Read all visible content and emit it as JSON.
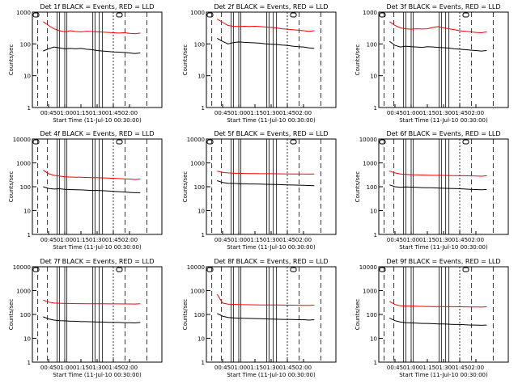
{
  "page": {
    "time_ticks": [
      "00:45",
      "01:00",
      "01:15",
      "01:30",
      "01:45",
      "02:00"
    ],
    "y_ticks": [
      "1",
      "10",
      "100",
      "1000",
      "10000"
    ]
  },
  "chart_data": [
    {
      "type": "line",
      "title": "Det 1f BLACK = Events, RED = LLD",
      "xlabel": "Start Time (11-Jul-10 00:30:00)",
      "ylabel": "Counts/sec",
      "y_scale": "log",
      "ylim": [
        1,
        1000
      ],
      "x_minutes": [
        10,
        15,
        20,
        25,
        30,
        35,
        40,
        45,
        50,
        55,
        60,
        65,
        70,
        75,
        80,
        85,
        90,
        95,
        100
      ],
      "series": [
        {
          "name": "Events",
          "color": "#000000",
          "values": [
            60,
            70,
            80,
            75,
            70,
            72,
            70,
            72,
            68,
            66,
            62,
            60,
            58,
            56,
            55,
            54,
            52,
            50,
            52
          ]
        },
        {
          "name": "LLD",
          "color": "#ff0000",
          "values": [
            500,
            380,
            300,
            260,
            240,
            260,
            245,
            240,
            250,
            245,
            240,
            235,
            230,
            225,
            220,
            225,
            215,
            210,
            220
          ]
        }
      ]
    },
    {
      "type": "line",
      "title": "Det 2f BLACK = Events, RED = LLD",
      "xlabel": "Start Time (11-Jul-10 00:30:00)",
      "ylabel": "Counts/sec",
      "y_scale": "log",
      "ylim": [
        1,
        1000
      ],
      "x_minutes": [
        10,
        15,
        20,
        25,
        30,
        35,
        40,
        45,
        50,
        55,
        60,
        65,
        70,
        75,
        80,
        85,
        90,
        95,
        100
      ],
      "series": [
        {
          "name": "Events",
          "color": "#000000",
          "values": [
            150,
            120,
            100,
            110,
            115,
            112,
            110,
            108,
            105,
            100,
            98,
            96,
            92,
            90,
            85,
            82,
            80,
            75,
            72
          ]
        },
        {
          "name": "LLD",
          "color": "#ff0000",
          "values": [
            600,
            480,
            380,
            360,
            350,
            360,
            355,
            360,
            350,
            340,
            330,
            320,
            300,
            290,
            280,
            270,
            260,
            250,
            260
          ]
        }
      ]
    },
    {
      "type": "line",
      "title": "Det 3f BLACK = Events, RED = LLD",
      "xlabel": "Start Time (11-Jul-10 00:30:00)",
      "ylabel": "Counts/sec",
      "y_scale": "log",
      "ylim": [
        1,
        1000
      ],
      "x_minutes": [
        10,
        15,
        20,
        25,
        30,
        35,
        40,
        45,
        50,
        55,
        60,
        65,
        70,
        75,
        80,
        85,
        90,
        95,
        100
      ],
      "series": [
        {
          "name": "Events",
          "color": "#000000",
          "values": [
            120,
            90,
            80,
            85,
            82,
            80,
            78,
            82,
            80,
            78,
            76,
            74,
            70,
            68,
            66,
            64,
            62,
            60,
            62
          ]
        },
        {
          "name": "LLD",
          "color": "#ff0000",
          "values": [
            500,
            380,
            320,
            300,
            290,
            300,
            295,
            300,
            330,
            350,
            320,
            300,
            280,
            260,
            250,
            240,
            230,
            225,
            240
          ]
        }
      ]
    },
    {
      "type": "line",
      "title": "Det 4f BLACK = Events, RED = LLD",
      "xlabel": "Start Time (11-Jul-10 00:30:00)",
      "ylabel": "Counts/sec",
      "y_scale": "log",
      "ylim": [
        1,
        10000
      ],
      "x_minutes": [
        10,
        15,
        20,
        25,
        30,
        35,
        40,
        45,
        50,
        55,
        60,
        65,
        70,
        75,
        80,
        85,
        90,
        95,
        100
      ],
      "series": [
        {
          "name": "Events",
          "color": "#000000",
          "values": [
            100,
            85,
            80,
            82,
            78,
            76,
            75,
            74,
            72,
            70,
            70,
            68,
            66,
            64,
            62,
            60,
            58,
            56,
            56
          ]
        },
        {
          "name": "LLD",
          "color": "#ff0000",
          "values": [
            500,
            350,
            300,
            280,
            260,
            255,
            250,
            250,
            245,
            240,
            240,
            235,
            230,
            225,
            220,
            215,
            210,
            200,
            210
          ]
        }
      ]
    },
    {
      "type": "line",
      "title": "Det 5f BLACK = Events, RED = LLD",
      "xlabel": "Start Time (11-Jul-10 00:30:00)",
      "ylabel": "Counts/sec",
      "y_scale": "log",
      "ylim": [
        1,
        10000
      ],
      "x_minutes": [
        10,
        15,
        20,
        25,
        30,
        35,
        40,
        45,
        50,
        55,
        60,
        65,
        70,
        75,
        80,
        85,
        90,
        95,
        100
      ],
      "series": [
        {
          "name": "Events",
          "color": "#000000",
          "values": [
            180,
            150,
            140,
            138,
            135,
            132,
            130,
            130,
            128,
            126,
            125,
            124,
            122,
            120,
            118,
            116,
            114,
            112,
            110
          ]
        },
        {
          "name": "LLD",
          "color": "#ff0000",
          "values": [
            450,
            400,
            380,
            370,
            365,
            360,
            358,
            355,
            352,
            350,
            350,
            348,
            346,
            345,
            344,
            342,
            340,
            338,
            340
          ]
        }
      ]
    },
    {
      "type": "line",
      "title": "Det 6f BLACK = Events, RED = LLD",
      "xlabel": "Start Time (11-Jul-10 00:30:00)",
      "ylabel": "Counts/sec",
      "y_scale": "log",
      "ylim": [
        1,
        10000
      ],
      "x_minutes": [
        10,
        15,
        20,
        25,
        30,
        35,
        40,
        45,
        50,
        55,
        60,
        65,
        70,
        75,
        80,
        85,
        90,
        95,
        100
      ],
      "series": [
        {
          "name": "Events",
          "color": "#000000",
          "values": [
            120,
            100,
            95,
            98,
            96,
            94,
            92,
            90,
            90,
            88,
            86,
            85,
            84,
            82,
            80,
            78,
            76,
            75,
            76
          ]
        },
        {
          "name": "LLD",
          "color": "#ff0000",
          "values": [
            450,
            380,
            340,
            330,
            320,
            315,
            310,
            305,
            300,
            300,
            298,
            295,
            292,
            290,
            288,
            285,
            280,
            275,
            290
          ]
        }
      ]
    },
    {
      "type": "line",
      "title": "Det 7f BLACK = Events, RED = LLD",
      "xlabel": "Start Time (11-Jul-10 00:30:00)",
      "ylabel": "Counts/sec",
      "y_scale": "log",
      "ylim": [
        1,
        10000
      ],
      "x_minutes": [
        10,
        15,
        20,
        25,
        30,
        35,
        40,
        45,
        50,
        55,
        60,
        65,
        70,
        75,
        80,
        85,
        90,
        95,
        100
      ],
      "series": [
        {
          "name": "Events",
          "color": "#000000",
          "values": [
            80,
            65,
            58,
            55,
            54,
            52,
            52,
            50,
            50,
            49,
            48,
            48,
            47,
            46,
            46,
            45,
            45,
            44,
            46
          ]
        },
        {
          "name": "LLD",
          "color": "#ff0000",
          "values": [
            400,
            330,
            300,
            295,
            290,
            288,
            285,
            285,
            283,
            282,
            280,
            280,
            279,
            278,
            277,
            276,
            275,
            274,
            280
          ]
        }
      ]
    },
    {
      "type": "line",
      "title": "Det 8f BLACK = Events, RED = LLD",
      "xlabel": "Start Time (11-Jul-10 00:30:00)",
      "ylabel": "Counts/sec",
      "y_scale": "log",
      "ylim": [
        1,
        10000
      ],
      "x_minutes": [
        10,
        15,
        20,
        25,
        30,
        35,
        40,
        45,
        50,
        55,
        60,
        65,
        70,
        75,
        80,
        85,
        90,
        95,
        100
      ],
      "series": [
        {
          "name": "Events",
          "color": "#000000",
          "values": [
            110,
            85,
            75,
            72,
            70,
            69,
            68,
            67,
            66,
            65,
            64,
            63,
            62,
            62,
            61,
            60,
            60,
            58,
            60
          ]
        },
        {
          "name": "LLD",
          "color": "#ff0000",
          "values": [
            700,
            300,
            270,
            265,
            260,
            258,
            255,
            254,
            252,
            250,
            250,
            249,
            248,
            246,
            245,
            244,
            242,
            240,
            245
          ]
        }
      ]
    },
    {
      "type": "line",
      "title": "Det 9f BLACK = Events, RED = LLD",
      "xlabel": "Start Time (11-Jul-10 00:30:00)",
      "ylabel": "Counts/sec",
      "y_scale": "log",
      "ylim": [
        1,
        10000
      ],
      "x_minutes": [
        10,
        15,
        20,
        25,
        30,
        35,
        40,
        45,
        50,
        55,
        60,
        65,
        70,
        75,
        80,
        85,
        90,
        95,
        100
      ],
      "series": [
        {
          "name": "Events",
          "color": "#000000",
          "values": [
            70,
            55,
            48,
            45,
            44,
            43,
            42,
            42,
            41,
            40,
            40,
            39,
            38,
            38,
            37,
            36,
            36,
            35,
            36
          ]
        },
        {
          "name": "LLD",
          "color": "#ff0000",
          "values": [
            350,
            260,
            230,
            225,
            222,
            220,
            218,
            216,
            215,
            214,
            213,
            212,
            211,
            210,
            208,
            206,
            205,
            203,
            210
          ]
        }
      ]
    }
  ]
}
